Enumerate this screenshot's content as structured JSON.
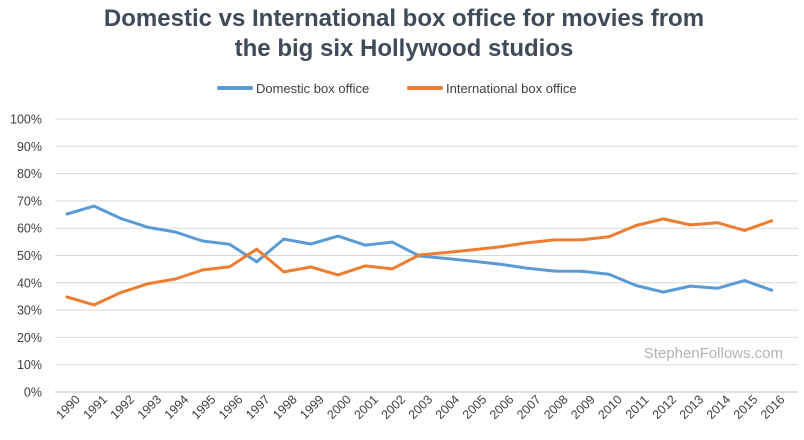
{
  "chart_data": {
    "type": "line",
    "title": [
      "Domestic vs International box office for movies from",
      "the big six Hollywood studios"
    ],
    "xlabel": "",
    "ylabel": "",
    "ylim": [
      0,
      100
    ],
    "y_ticks": [
      0,
      10,
      20,
      30,
      40,
      50,
      60,
      70,
      80,
      90,
      100
    ],
    "y_tick_labels": [
      "0%",
      "10%",
      "20%",
      "30%",
      "40%",
      "50%",
      "60%",
      "70%",
      "80%",
      "90%",
      "100%"
    ],
    "grid": true,
    "legend_position": "top-center",
    "categories": [
      "1990",
      "1991",
      "1992",
      "1993",
      "1994",
      "1995",
      "1996",
      "1997",
      "1998",
      "1999",
      "2000",
      "2001",
      "2002",
      "2003",
      "2004",
      "2005",
      "2006",
      "2007",
      "2008",
      "2009",
      "2010",
      "2011",
      "2012",
      "2013",
      "2014",
      "2015",
      "2016"
    ],
    "series": [
      {
        "name": "Domestic box office",
        "color": "#5b9bd5",
        "values": [
          65.2,
          68.1,
          63.5,
          60.3,
          58.6,
          55.3,
          54.1,
          47.7,
          56.0,
          54.2,
          57.1,
          53.8,
          54.9,
          49.8,
          48.9,
          47.9,
          46.8,
          45.3,
          44.3,
          44.2,
          43.1,
          39.0,
          36.6,
          38.8,
          38.0,
          40.8,
          37.3
        ]
      },
      {
        "name": "International box office",
        "color": "#ed7d31",
        "values": [
          34.8,
          31.9,
          36.5,
          39.7,
          41.4,
          44.7,
          45.9,
          52.3,
          44.0,
          45.8,
          42.9,
          46.2,
          45.1,
          50.2,
          51.1,
          52.1,
          53.2,
          54.7,
          55.7,
          55.8,
          56.9,
          61.0,
          63.4,
          61.2,
          62.0,
          59.2,
          62.7
        ]
      }
    ]
  },
  "watermark": "StephenFollows.com"
}
